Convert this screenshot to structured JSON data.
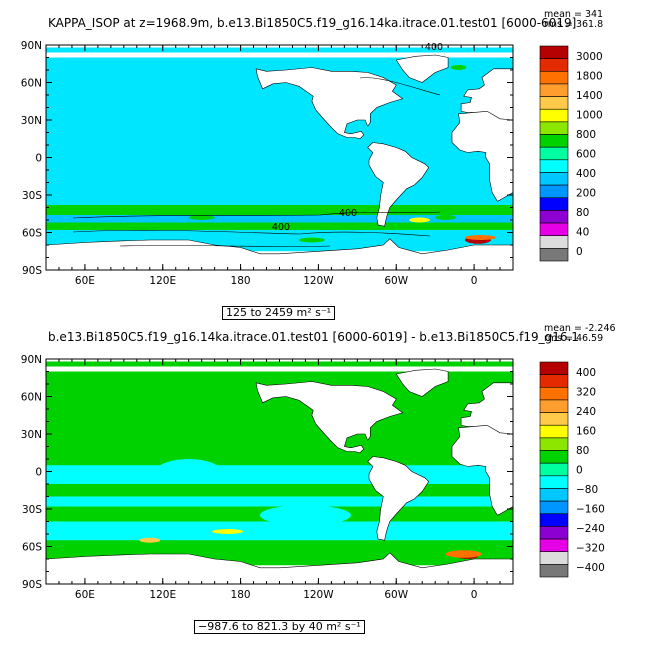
{
  "panel1": {
    "title": "KAPPA_ISOP at z=1968.9m, b.e13.Bi1850C5.f19_g16.14ka.itrace.01.test01 [6000-6019]",
    "mean": "mean = 341",
    "rms": "rms = 361.8",
    "range_label": "125 to 2459 m² s⁻¹",
    "contour_labels": [
      "400",
      "400",
      "400"
    ],
    "lat_labels": [
      "90N",
      "60N",
      "30N",
      "0",
      "30S",
      "60S",
      "90S"
    ],
    "lon_labels": [
      "60E",
      "120E",
      "180",
      "120W",
      "60W",
      "0"
    ],
    "colorbar": {
      "labels": [
        "3000",
        "1800",
        "1400",
        "1000",
        "800",
        "600",
        "400",
        "200",
        "80",
        "40",
        "0"
      ],
      "colors": [
        "#b40000",
        "#e42a00",
        "#ff7200",
        "#ff9d2f",
        "#ffc94a",
        "#ffff00",
        "#8ce600",
        "#00d200",
        "#00ffa0",
        "#00ffff",
        "#00c8ff",
        "#0096ff",
        "#0000ff",
        "#8c00d2",
        "#e600e6",
        "#dcdcdc",
        "#787878"
      ]
    }
  },
  "panel2": {
    "title": "b.e13.Bi1850C5.f19_g16.14ka.itrace.01.test01 [6000-6019] - b.e13.Bi1850C5.f19_g16.1",
    "mean": "mean = -2.246",
    "rms": "rms = 46.59",
    "range_label": "−987.6 to 821.3 by 40 m² s⁻¹",
    "lat_labels": [
      "90N",
      "60N",
      "30N",
      "0",
      "30S",
      "60S",
      "90S"
    ],
    "lon_labels": [
      "60E",
      "120E",
      "180",
      "120W",
      "60W",
      "0"
    ],
    "colorbar": {
      "labels": [
        "400",
        "320",
        "240",
        "160",
        "80",
        "0",
        "−80",
        "−160",
        "−240",
        "−320",
        "−400"
      ],
      "colors": [
        "#b40000",
        "#e42a00",
        "#ff7200",
        "#ff9d2f",
        "#ffc94a",
        "#ffff00",
        "#8ce600",
        "#00d200",
        "#00ffa0",
        "#00ffff",
        "#00c8ff",
        "#0096ff",
        "#0000ff",
        "#8c00d2",
        "#e600e6",
        "#dcdcdc",
        "#787878"
      ]
    }
  },
  "colors": {
    "ocean_bg1": "#00e6ff",
    "ocean_bg2": "#00ff8c",
    "land": "#ffffff",
    "frame": "#000000"
  }
}
